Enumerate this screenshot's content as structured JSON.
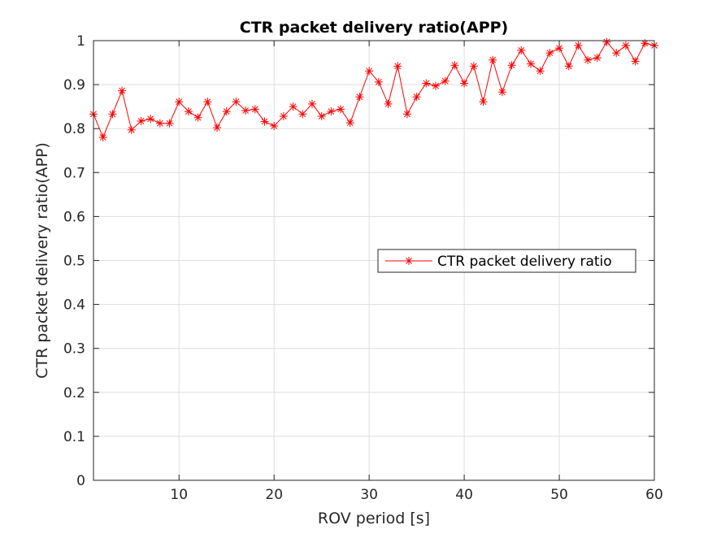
{
  "chart_data": {
    "type": "line",
    "title": "CTR packet delivery ratio(APP)",
    "xlabel": "ROV period [s]",
    "ylabel": "CTR packet delivery ratio(APP)",
    "xlim": [
      1,
      60
    ],
    "ylim": [
      0,
      1
    ],
    "xticks": [
      10,
      20,
      30,
      40,
      50,
      60
    ],
    "yticks": [
      0,
      0.1,
      0.2,
      0.3,
      0.4,
      0.5,
      0.6,
      0.7,
      0.8,
      0.9,
      1
    ],
    "xtick_labels": [
      "10",
      "20",
      "30",
      "40",
      "50",
      "60"
    ],
    "ytick_labels": [
      "0",
      "0.1",
      "0.2",
      "0.3",
      "0.4",
      "0.5",
      "0.6",
      "0.7",
      "0.8",
      "0.9",
      "1"
    ],
    "grid": true,
    "legend_position": "center-right",
    "series": [
      {
        "name": "CTR packet delivery ratio",
        "color": "#ff0000",
        "marker": "asterisk",
        "x": [
          1,
          2,
          3,
          4,
          5,
          6,
          7,
          8,
          9,
          10,
          11,
          12,
          13,
          14,
          15,
          16,
          17,
          18,
          19,
          20,
          21,
          22,
          23,
          24,
          25,
          26,
          27,
          28,
          29,
          30,
          31,
          32,
          33,
          34,
          35,
          36,
          37,
          38,
          39,
          40,
          41,
          42,
          43,
          44,
          45,
          46,
          47,
          48,
          49,
          50,
          51,
          52,
          53,
          54,
          55,
          56,
          57,
          58,
          59,
          60
        ],
        "values": [
          0.833,
          0.78,
          0.833,
          0.886,
          0.797,
          0.817,
          0.822,
          0.812,
          0.812,
          0.861,
          0.839,
          0.825,
          0.861,
          0.802,
          0.839,
          0.861,
          0.841,
          0.844,
          0.816,
          0.806,
          0.828,
          0.85,
          0.833,
          0.856,
          0.828,
          0.839,
          0.844,
          0.813,
          0.872,
          0.931,
          0.906,
          0.856,
          0.942,
          0.833,
          0.872,
          0.903,
          0.897,
          0.908,
          0.944,
          0.903,
          0.942,
          0.861,
          0.956,
          0.883,
          0.944,
          0.978,
          0.947,
          0.931,
          0.972,
          0.983,
          0.942,
          0.989,
          0.956,
          0.961,
          0.997,
          0.972,
          0.989,
          0.953,
          0.994,
          0.989
        ]
      }
    ]
  }
}
